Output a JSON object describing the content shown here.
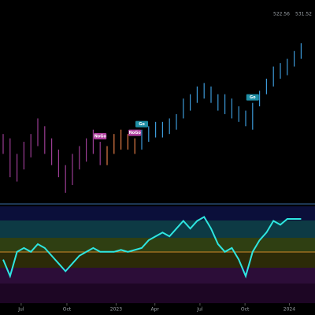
{
  "chart_data": {
    "type": "ohlc",
    "price_labels": [
      "522.56",
      "531.52"
    ],
    "ylim": [
      345,
      580
    ],
    "high": [
      425,
      420,
      402,
      416,
      425,
      443,
      434,
      420,
      407,
      389,
      402,
      411,
      420,
      430,
      416,
      411,
      425,
      430,
      425,
      420,
      430,
      434,
      439,
      439,
      443,
      448,
      466,
      471,
      480,
      484,
      480,
      471,
      471,
      466,
      457,
      452,
      461,
      475,
      489,
      503,
      507,
      512,
      521,
      530
    ],
    "low": [
      402,
      375,
      370,
      384,
      398,
      411,
      402,
      389,
      375,
      357,
      366,
      384,
      393,
      402,
      389,
      389,
      402,
      407,
      407,
      402,
      407,
      416,
      421,
      421,
      425,
      430,
      443,
      452,
      461,
      466,
      461,
      452,
      448,
      443,
      439,
      434,
      430,
      457,
      471,
      480,
      489,
      493,
      503,
      512
    ],
    "colors": [
      "#9b3d94",
      "#9b3d94",
      "#9b3d94",
      "#9b3d94",
      "#9b3d94",
      "#9b3d94",
      "#9b3d94",
      "#9b3d94",
      "#9b3d94",
      "#9b3d94",
      "#9b3d94",
      "#9b3d94",
      "#9b3d94",
      "#9b3d94",
      "#9b3d94",
      "#e07b45",
      "#e07b45",
      "#e07b45",
      "#e07b45",
      "#e07b45",
      "#3c9ad8",
      "#3c9ad8",
      "#3c9ad8",
      "#3c9ad8",
      "#3c9ad8",
      "#3c9ad8",
      "#3c9ad8",
      "#3c9ad8",
      "#3c9ad8",
      "#3c9ad8",
      "#3c9ad8",
      "#3c9ad8",
      "#3c9ad8",
      "#3c9ad8",
      "#3c9ad8",
      "#3c9ad8",
      "#3c9ad8",
      "#3c9ad8",
      "#3c9ad8",
      "#3c9ad8",
      "#3c9ad8",
      "#3c9ad8",
      "#3c9ad8",
      "#3c9ad8"
    ],
    "xticks": [
      {
        "value": 2.6,
        "label": "Jul"
      },
      {
        "value": 9.2,
        "label": "Oct"
      },
      {
        "value": 16.3,
        "label": "2023"
      },
      {
        "value": 21.9,
        "label": "Apr"
      },
      {
        "value": 28.4,
        "label": "Jul"
      },
      {
        "value": 34.9,
        "label": "Oct"
      },
      {
        "value": 41.3,
        "label": "2024"
      }
    ],
    "annotations": [
      {
        "text": "NoGo",
        "index": 14,
        "color": "#b0409f"
      },
      {
        "text": "NoGo",
        "index": 19,
        "color": "#b0409f"
      },
      {
        "text": "Go",
        "index": 20,
        "color": "#1f8fa6"
      },
      {
        "text": "Go",
        "index": 36,
        "color": "#1f8fa6"
      }
    ],
    "oscillator": {
      "color": "#2ee6e0",
      "ylim": [
        0,
        100
      ],
      "values": [
        45,
        28,
        53,
        57,
        53,
        61,
        57,
        49,
        41,
        33,
        41,
        49,
        53,
        57,
        53,
        53,
        53,
        55,
        53,
        55,
        57,
        65,
        69,
        73,
        69,
        77,
        85,
        77,
        85,
        89,
        77,
        61,
        53,
        57,
        45,
        28,
        53,
        65,
        73,
        85,
        81,
        87,
        87,
        87
      ]
    }
  }
}
